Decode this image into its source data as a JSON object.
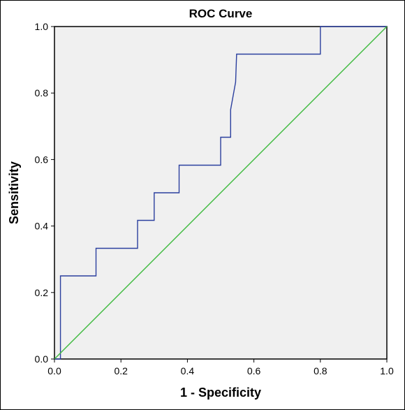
{
  "chart_data": {
    "type": "line",
    "title": "ROC Curve",
    "xlabel": "1 - Specificity",
    "ylabel": "Sensitivity",
    "xlim": [
      0.0,
      1.0
    ],
    "ylim": [
      0.0,
      1.0
    ],
    "xticks": [
      "0.0",
      "0.2",
      "0.4",
      "0.6",
      "0.8",
      "1.0"
    ],
    "yticks": [
      "0.0",
      "0.2",
      "0.4",
      "0.6",
      "0.8",
      "1.0"
    ],
    "grid": false,
    "series": [
      {
        "role": "roc-curve",
        "color": "#2b3f9e",
        "points": [
          [
            0.0,
            0.0
          ],
          [
            0.018,
            0.0
          ],
          [
            0.018,
            0.25
          ],
          [
            0.125,
            0.25
          ],
          [
            0.125,
            0.333
          ],
          [
            0.25,
            0.333
          ],
          [
            0.25,
            0.417
          ],
          [
            0.3,
            0.417
          ],
          [
            0.3,
            0.5
          ],
          [
            0.375,
            0.5
          ],
          [
            0.375,
            0.583
          ],
          [
            0.5,
            0.583
          ],
          [
            0.5,
            0.667
          ],
          [
            0.53,
            0.667
          ],
          [
            0.53,
            0.75
          ],
          [
            0.545,
            0.833
          ],
          [
            0.548,
            0.917
          ],
          [
            0.8,
            0.917
          ],
          [
            0.8,
            1.0
          ],
          [
            1.0,
            1.0
          ]
        ]
      },
      {
        "role": "reference-line",
        "color": "#3dba3d",
        "points": [
          [
            0.0,
            0.0
          ],
          [
            1.0,
            1.0
          ]
        ]
      }
    ],
    "plot_background": "#f0f0f0",
    "axis_color": "#000000"
  }
}
